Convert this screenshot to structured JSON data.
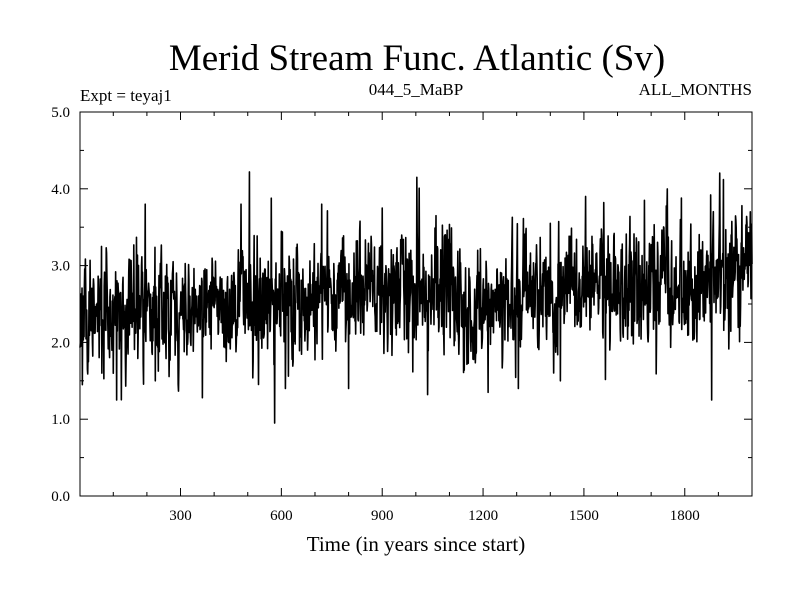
{
  "chart_data": {
    "type": "line",
    "title": "Merid Stream Func. Atlantic (Sv)",
    "subtitle_left": "Expt = teyaj1",
    "subtitle_center": "044_5_MaBP",
    "subtitle_right": "ALL_MONTHS",
    "xlabel": "Time (in years since start)",
    "ylabel": "",
    "xlim": [
      1,
      2000
    ],
    "ylim": [
      0.0,
      5.0
    ],
    "x_ticks": [
      300,
      600,
      900,
      1200,
      1500,
      1800
    ],
    "y_ticks": [
      "0.0",
      "1.0",
      "2.0",
      "3.0",
      "4.0",
      "5.0"
    ],
    "series": [
      {
        "name": "Merid Stream Func. Atlantic",
        "color": "#000000",
        "trend_x": [
          1,
          150,
          300,
          450,
          600,
          750,
          900,
          1050,
          1200,
          1350,
          1500,
          1650,
          1800,
          1950,
          2000
        ],
        "trend_y": [
          2.35,
          2.35,
          2.4,
          2.5,
          2.6,
          2.65,
          2.7,
          2.7,
          2.6,
          2.6,
          2.65,
          2.7,
          2.65,
          2.85,
          2.95
        ],
        "noise_sd": 0.38,
        "highlights": [
          {
            "x": 8,
            "y": 1.45
          },
          {
            "x": 65,
            "y": 3.25
          },
          {
            "x": 110,
            "y": 1.25
          },
          {
            "x": 195,
            "y": 3.8
          },
          {
            "x": 225,
            "y": 1.5
          },
          {
            "x": 365,
            "y": 1.28
          },
          {
            "x": 480,
            "y": 3.8
          },
          {
            "x": 505,
            "y": 4.22
          },
          {
            "x": 580,
            "y": 0.95
          },
          {
            "x": 612,
            "y": 1.4
          },
          {
            "x": 720,
            "y": 3.8
          },
          {
            "x": 800,
            "y": 1.4
          },
          {
            "x": 900,
            "y": 3.75
          },
          {
            "x": 1003,
            "y": 4.15
          },
          {
            "x": 1035,
            "y": 1.32
          },
          {
            "x": 1060,
            "y": 3.65
          },
          {
            "x": 1215,
            "y": 1.35
          },
          {
            "x": 1305,
            "y": 1.4
          },
          {
            "x": 1400,
            "y": 3.55
          },
          {
            "x": 1430,
            "y": 1.5
          },
          {
            "x": 1505,
            "y": 3.9
          },
          {
            "x": 1680,
            "y": 3.85
          },
          {
            "x": 1790,
            "y": 3.88
          },
          {
            "x": 1880,
            "y": 1.25
          },
          {
            "x": 1915,
            "y": 4.12
          },
          {
            "x": 1970,
            "y": 3.78
          },
          {
            "x": 1995,
            "y": 3.7
          }
        ]
      }
    ]
  }
}
